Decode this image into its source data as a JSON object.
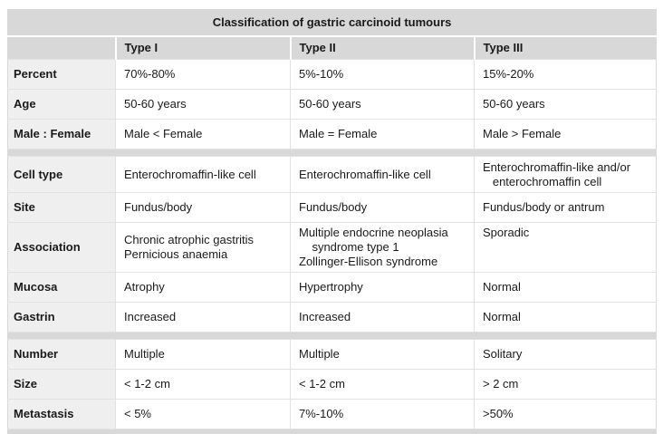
{
  "colors": {
    "page_bg": "#ffffff",
    "band": "#d8d8d8",
    "label_bg": "#efefef",
    "grid": "#e2e2e2",
    "text": "#1a1a1a"
  },
  "table": {
    "title": "Classification of gastric carcinoid tumours",
    "columns": [
      "",
      "Type I",
      "Type II",
      "Type III"
    ],
    "sections": [
      {
        "rows": [
          {
            "label": "Percent",
            "cells": [
              "70%-80%",
              "5%-10%",
              "15%-20%"
            ]
          },
          {
            "label": "Age",
            "cells": [
              "50-60 years",
              "50-60 years",
              "50-60 years"
            ]
          },
          {
            "label": "Male : Female",
            "cells": [
              "Male < Female",
              "Male = Female",
              "Male > Female"
            ]
          }
        ]
      },
      {
        "rows": [
          {
            "label": "Cell type",
            "cells": [
              "Enterochromaffin-like cell",
              "Enterochromaffin-like cell",
              "Enterochromaffin-like and/or\n   enterochromaffin cell"
            ]
          },
          {
            "label": "Site",
            "cells": [
              "Fundus/body",
              "Fundus/body",
              "Fundus/body or antrum"
            ]
          },
          {
            "label": "Association",
            "cells": [
              "Chronic atrophic gastritis\nPernicious anaemia",
              "Multiple endocrine neoplasia\n    syndrome type 1\nZollinger-Ellison syndrome",
              "Sporadic"
            ]
          },
          {
            "label": "Mucosa",
            "cells": [
              "Atrophy",
              "Hypertrophy",
              "Normal"
            ]
          },
          {
            "label": "Gastrin",
            "cells": [
              "Increased",
              "Increased",
              "Normal"
            ]
          }
        ]
      },
      {
        "rows": [
          {
            "label": "Number",
            "cells": [
              "Multiple",
              "Multiple",
              "Solitary"
            ]
          },
          {
            "label": "Size",
            "cells": [
              "< 1-2 cm",
              "< 1-2 cm",
              "> 2 cm"
            ]
          },
          {
            "label": "Metastasis",
            "cells": [
              "< 5%",
              "7%-10%",
              ">50%"
            ]
          }
        ]
      }
    ]
  }
}
